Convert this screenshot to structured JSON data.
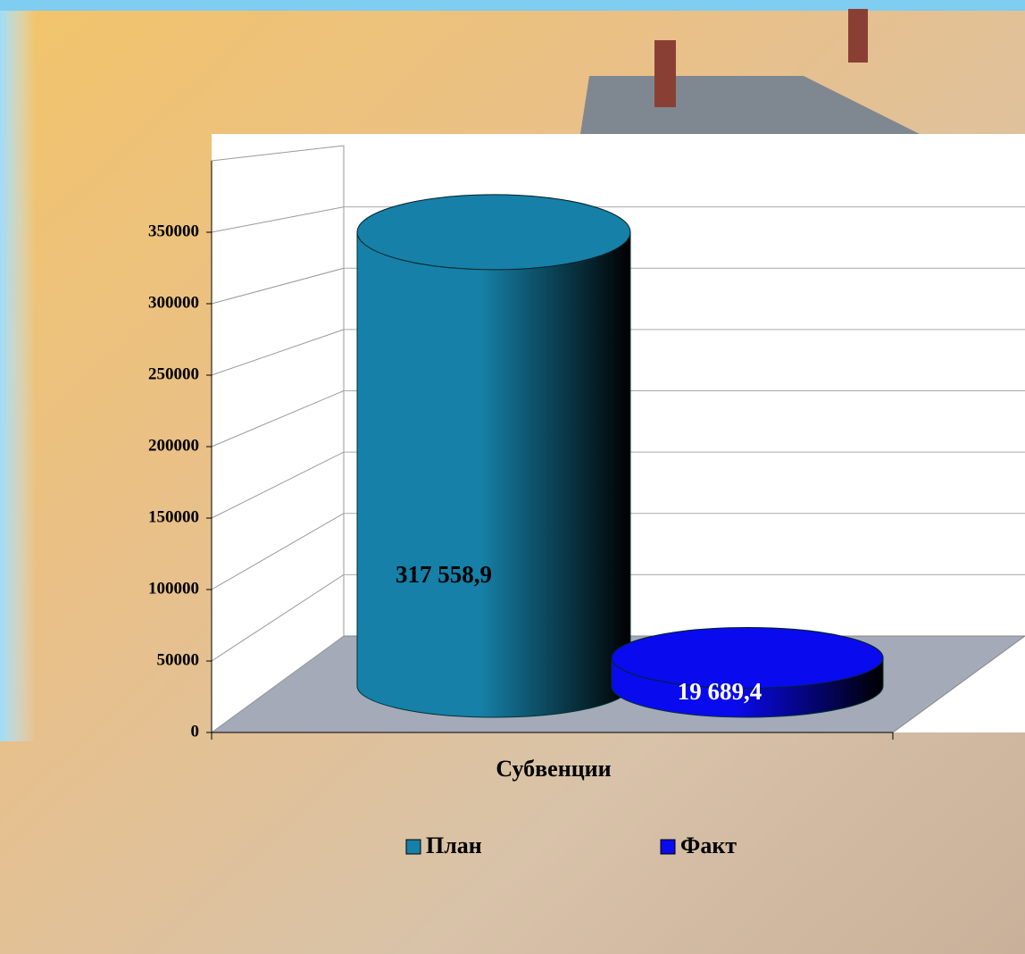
{
  "chart_data": {
    "type": "cylinder",
    "categories": [
      "Субвенции"
    ],
    "series": [
      {
        "name": "План",
        "color": "#1680a8",
        "values": [
          317558.9
        ],
        "value_labels": [
          "317 558,9"
        ]
      },
      {
        "name": "Факт",
        "color": "#0a0aee",
        "values": [
          19689.4
        ],
        "value_labels": [
          "19 689,4"
        ]
      }
    ],
    "ylim": [
      0,
      400000
    ],
    "yticks": [
      0,
      50000,
      100000,
      150000,
      200000,
      250000,
      300000,
      350000
    ],
    "grid": true,
    "legend": "bottom"
  }
}
